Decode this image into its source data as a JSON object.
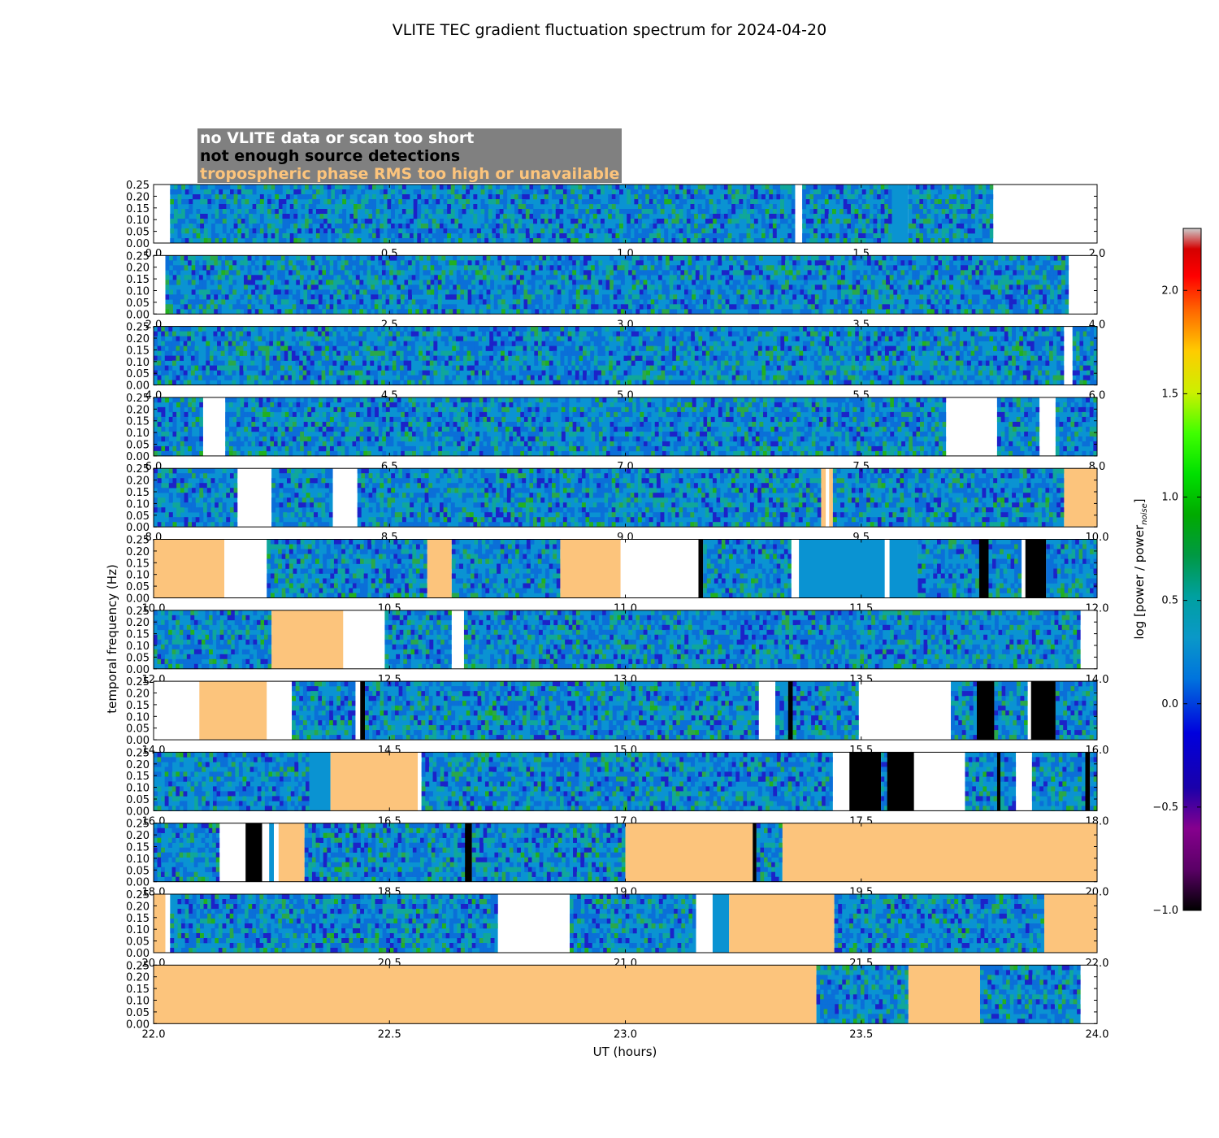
{
  "title": "VLITE TEC gradient fluctuation spectrum for 2024-04-20",
  "legend": [
    {
      "label": "no VLITE data or scan too short",
      "color": "#ffffff"
    },
    {
      "label": "not enough source detections",
      "color": "#000000"
    },
    {
      "label": "tropospheric phase RMS too high or unavailable",
      "color": "#fcc47c"
    }
  ],
  "chart_data": {
    "type": "heatmap",
    "title": "VLITE TEC gradient fluctuation spectrum for 2024-04-20",
    "xlabel": "UT (hours)",
    "ylabel": "temporal frequency (Hz)",
    "ylim": [
      0,
      0.25
    ],
    "yticks": [
      "0.00",
      "0.05",
      "0.10",
      "0.15",
      "0.20",
      "0.25"
    ],
    "colorbar": {
      "label": "log [power / power",
      "label_sub": "noise",
      "label_end": "]",
      "range": [
        -1.0,
        2.3
      ],
      "ticks": [
        "2.0",
        "1.5",
        "1.0",
        "0.5",
        "0.0",
        "−0.5",
        "−1.0"
      ],
      "tick_values": [
        2.0,
        1.5,
        1.0,
        0.5,
        0.0,
        -0.5,
        -1.0
      ]
    },
    "colors": {
      "no_data": "#ffffff",
      "not_enough_detections": "#000000",
      "troposphere_rms": "#fcc47c",
      "constant_fill": "#0a93d2"
    },
    "rows": [
      {
        "range": [
          0,
          2
        ],
        "xticks": [
          "0.0",
          "0.5",
          "1.0",
          "1.5",
          "2.0"
        ],
        "segments": [
          [
            "w",
            0,
            0.035
          ],
          [
            "s",
            0.035,
            1.36
          ],
          [
            "w",
            1.36,
            1.375
          ],
          [
            "s",
            1.375,
            1.565
          ],
          [
            "c",
            1.565,
            1.6
          ],
          [
            "s",
            1.6,
            1.78
          ],
          [
            "w",
            1.78,
            2
          ]
        ]
      },
      {
        "range": [
          2,
          4
        ],
        "xticks": [
          "2.0",
          "2.5",
          "3.0",
          "3.5",
          "4.0"
        ],
        "segments": [
          [
            "w",
            2,
            2.025
          ],
          [
            "s",
            2.025,
            3.94
          ],
          [
            "w",
            3.94,
            4
          ]
        ]
      },
      {
        "range": [
          4,
          6
        ],
        "xticks": [
          "4.0",
          "4.5",
          "5.0",
          "5.5",
          "6.0"
        ],
        "segments": [
          [
            "s",
            4,
            5.93
          ],
          [
            "w",
            5.93,
            5.948
          ],
          [
            "s",
            5.948,
            6
          ]
        ]
      },
      {
        "range": [
          6,
          8
        ],
        "xticks": [
          "6.0",
          "6.5",
          "7.0",
          "7.5",
          "8.0"
        ],
        "segments": [
          [
            "s",
            6,
            6.105
          ],
          [
            "w",
            6.105,
            6.152
          ],
          [
            "s",
            6.152,
            7.68
          ],
          [
            "w",
            7.68,
            7.788
          ],
          [
            "a",
            7.788,
            7.878
          ],
          [
            "w",
            7.878,
            7.912
          ],
          [
            "s",
            7.912,
            8
          ]
        ]
      },
      {
        "range": [
          8,
          10
        ],
        "xticks": [
          "8.0",
          "8.5",
          "9.0",
          "9.5",
          "10.0"
        ],
        "segments": [
          [
            "s",
            8,
            8.178
          ],
          [
            "w",
            8.178,
            8.25
          ],
          [
            "a",
            8.25,
            8.38
          ],
          [
            "w",
            8.38,
            8.432
          ],
          [
            "s",
            8.432,
            9.415
          ],
          [
            "t",
            9.415,
            9.425
          ],
          [
            "w",
            9.425,
            9.432
          ],
          [
            "t",
            9.432,
            9.44
          ],
          [
            "s",
            9.44,
            9.93
          ],
          [
            "t",
            9.93,
            10
          ]
        ]
      },
      {
        "range": [
          10,
          12
        ],
        "xticks": [
          "10.0",
          "10.5",
          "11.0",
          "11.5",
          "12.0"
        ],
        "segments": [
          [
            "t",
            10,
            10.15
          ],
          [
            "w",
            10.15,
            10.24
          ],
          [
            "s",
            10.24,
            10.58
          ],
          [
            "t",
            10.58,
            10.632
          ],
          [
            "s",
            10.632,
            10.862
          ],
          [
            "t",
            10.862,
            10.99
          ],
          [
            "w",
            10.99,
            11.155
          ],
          [
            "k",
            11.155,
            11.165
          ],
          [
            "s",
            11.165,
            11.352
          ],
          [
            "w",
            11.352,
            11.368
          ],
          [
            "c",
            11.368,
            11.55
          ],
          [
            "w",
            11.55,
            11.56
          ],
          [
            "c",
            11.56,
            11.62
          ],
          [
            "s",
            11.62,
            11.75
          ],
          [
            "k",
            11.75,
            11.77
          ],
          [
            "s",
            11.77,
            11.84
          ],
          [
            "w",
            11.84,
            11.848
          ],
          [
            "k",
            11.848,
            11.892
          ],
          [
            "s",
            11.892,
            12
          ]
        ]
      },
      {
        "range": [
          12,
          14
        ],
        "xticks": [
          "12.0",
          "12.5",
          "13.0",
          "13.5",
          "14.0"
        ],
        "segments": [
          [
            "s",
            12,
            12.25
          ],
          [
            "t",
            12.25,
            12.402
          ],
          [
            "w",
            12.402,
            12.49
          ],
          [
            "s",
            12.49,
            12.632
          ],
          [
            "w",
            12.632,
            12.658
          ],
          [
            "s",
            12.658,
            13.965
          ],
          [
            "w",
            13.965,
            14
          ]
        ]
      },
      {
        "range": [
          14,
          16
        ],
        "xticks": [
          "14.0",
          "14.5",
          "15.0",
          "15.5",
          "16.0"
        ],
        "segments": [
          [
            "w",
            14,
            14.097
          ],
          [
            "t",
            14.097,
            14.24
          ],
          [
            "w",
            14.24,
            14.293
          ],
          [
            "s",
            14.293,
            14.428
          ],
          [
            "w",
            14.428,
            14.438
          ],
          [
            "k",
            14.438,
            14.448
          ],
          [
            "s",
            14.448,
            15.283
          ],
          [
            "w",
            15.283,
            15.318
          ],
          [
            "s",
            15.318,
            15.345
          ],
          [
            "k",
            15.345,
            15.355
          ],
          [
            "s",
            15.355,
            15.495
          ],
          [
            "w",
            15.495,
            15.69
          ],
          [
            "s",
            15.69,
            15.745
          ],
          [
            "k",
            15.745,
            15.782
          ],
          [
            "s",
            15.782,
            15.853
          ],
          [
            "w",
            15.853,
            15.86
          ],
          [
            "k",
            15.86,
            15.912
          ],
          [
            "s",
            15.912,
            16
          ]
        ]
      },
      {
        "range": [
          16,
          18
        ],
        "xticks": [
          "16.0",
          "16.5",
          "17.0",
          "17.5",
          "18.0"
        ],
        "segments": [
          [
            "s",
            16,
            16.33
          ],
          [
            "c",
            16.33,
            16.375
          ],
          [
            "t",
            16.375,
            16.56
          ],
          [
            "w",
            16.56,
            16.568
          ],
          [
            "s",
            16.568,
            17.44
          ],
          [
            "w",
            17.44,
            17.475
          ],
          [
            "k",
            17.475,
            17.542
          ],
          [
            "s",
            17.542,
            17.555
          ],
          [
            "k",
            17.555,
            17.612
          ],
          [
            "w",
            17.612,
            17.72
          ],
          [
            "s",
            17.72,
            17.788
          ],
          [
            "k",
            17.788,
            17.795
          ],
          [
            "s",
            17.795,
            17.828
          ],
          [
            "w",
            17.828,
            17.862
          ],
          [
            "s",
            17.862,
            17.975
          ],
          [
            "k",
            17.975,
            17.985
          ],
          [
            "s",
            17.985,
            18
          ]
        ]
      },
      {
        "range": [
          18,
          20
        ],
        "xticks": [
          "18.0",
          "18.5",
          "19.0",
          "19.5",
          "20.0"
        ],
        "segments": [
          [
            "s",
            18,
            18.14
          ],
          [
            "w",
            18.14,
            18.195
          ],
          [
            "k",
            18.195,
            18.23
          ],
          [
            "w",
            18.23,
            18.245
          ],
          [
            "c",
            18.245,
            18.255
          ],
          [
            "w",
            18.255,
            18.265
          ],
          [
            "t",
            18.265,
            18.32
          ],
          [
            "s",
            18.32,
            18.66
          ],
          [
            "k",
            18.66,
            18.675
          ],
          [
            "s",
            18.675,
            19.0
          ],
          [
            "t",
            19.0,
            19.27
          ],
          [
            "k",
            19.27,
            19.278
          ],
          [
            "s",
            19.278,
            19.333
          ],
          [
            "t",
            19.333,
            20
          ]
        ]
      },
      {
        "range": [
          20,
          22
        ],
        "xticks": [
          "20.0",
          "20.5",
          "21.0",
          "21.5",
          "22.0"
        ],
        "segments": [
          [
            "t",
            20,
            20.025
          ],
          [
            "w",
            20.025,
            20.035
          ],
          [
            "s",
            20.035,
            20.73
          ],
          [
            "w",
            20.73,
            20.882
          ],
          [
            "s",
            20.882,
            21.15
          ],
          [
            "w",
            21.15,
            21.185
          ],
          [
            "c",
            21.185,
            21.22
          ],
          [
            "t",
            21.22,
            21.443
          ],
          [
            "s",
            21.443,
            21.888
          ],
          [
            "t",
            21.888,
            22
          ]
        ]
      },
      {
        "range": [
          22,
          24
        ],
        "xticks": [
          "22.0",
          "22.5",
          "23.0",
          "23.5",
          "24.0"
        ],
        "segments": [
          [
            "t",
            22,
            23.405
          ],
          [
            "s",
            23.405,
            23.6
          ],
          [
            "t",
            23.6,
            23.752
          ],
          [
            "s",
            23.752,
            23.965
          ],
          [
            "w",
            23.965,
            24
          ]
        ]
      }
    ]
  }
}
